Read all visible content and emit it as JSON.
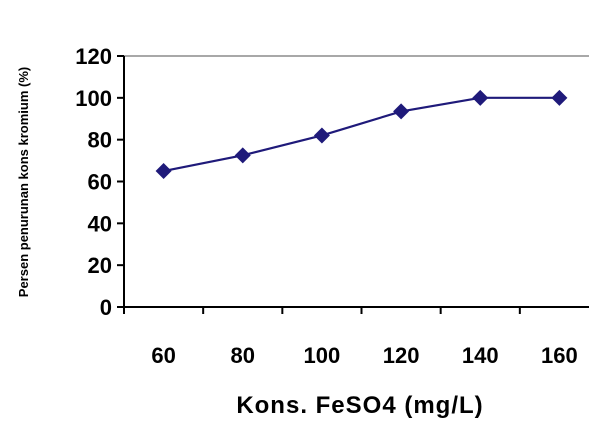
{
  "chart_data": {
    "type": "line",
    "x": [
      60,
      80,
      100,
      120,
      140,
      160
    ],
    "categories": [
      "60",
      "80",
      "100",
      "120",
      "140",
      "160"
    ],
    "series": [
      {
        "values": [
          65,
          72.5,
          82,
          93.5,
          100,
          100
        ],
        "color": "#1f1a7a",
        "marker": "diamond"
      }
    ],
    "xlabel": "Kons. FeSO4 (mg/L)",
    "ylabel": "Persen penurunan kons kromium (%)",
    "ylim": [
      0,
      120
    ],
    "yticks": [
      "0",
      "20",
      "40",
      "60",
      "80",
      "100",
      "120"
    ],
    "grid": false,
    "legend": "none"
  }
}
